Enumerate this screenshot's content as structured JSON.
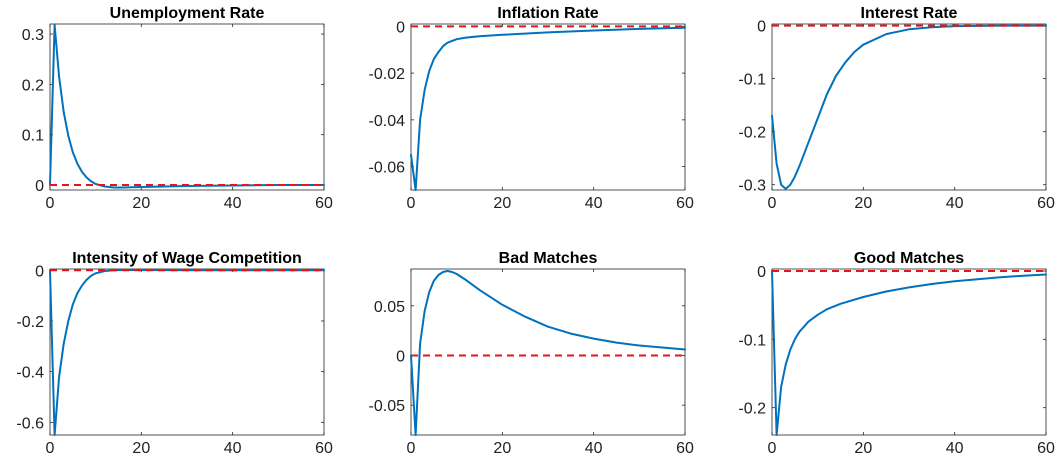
{
  "colors": {
    "response": "#0072bd",
    "zero": "#e8141a"
  },
  "chart_data": [
    {
      "type": "line",
      "title": "Unemployment Rate",
      "xlim": [
        0,
        60
      ],
      "ylim": [
        -0.01,
        0.32
      ],
      "xticks": [
        0,
        20,
        40,
        60
      ],
      "xtick_labels": [
        "0",
        "20",
        "40",
        "60"
      ],
      "yticks": [
        0,
        0.1,
        0.2,
        0.3
      ],
      "ytick_labels": [
        "0",
        "0.1",
        "0.2",
        "0.3"
      ],
      "reference_y": 0,
      "x": [
        0,
        1,
        2,
        3,
        4,
        5,
        6,
        7,
        8,
        9,
        10,
        12,
        14,
        16,
        20,
        25,
        30,
        40,
        50,
        60
      ],
      "y": [
        0,
        0.318,
        0.215,
        0.145,
        0.098,
        0.065,
        0.042,
        0.026,
        0.015,
        0.007,
        0.002,
        -0.003,
        -0.005,
        -0.005,
        -0.004,
        -0.003,
        -0.002,
        -0.001,
        0,
        0
      ]
    },
    {
      "type": "line",
      "title": "Inflation Rate",
      "xlim": [
        0,
        60
      ],
      "ylim": [
        -0.07,
        0.001
      ],
      "xticks": [
        0,
        20,
        40,
        60
      ],
      "xtick_labels": [
        "0",
        "20",
        "40",
        "60"
      ],
      "yticks": [
        -0.06,
        -0.04,
        -0.02,
        0
      ],
      "ytick_labels": [
        "-0.06",
        "-0.04",
        "-0.02",
        "0"
      ],
      "reference_y": 0,
      "x": [
        0,
        1,
        2,
        3,
        4,
        5,
        6,
        7,
        8,
        10,
        12,
        15,
        20,
        30,
        40,
        50,
        60
      ],
      "y": [
        -0.055,
        -0.07,
        -0.04,
        -0.027,
        -0.019,
        -0.014,
        -0.011,
        -0.0085,
        -0.007,
        -0.0055,
        -0.0048,
        -0.0042,
        -0.0036,
        -0.0026,
        -0.0018,
        -0.0011,
        -0.0006
      ]
    },
    {
      "type": "line",
      "title": "Interest Rate",
      "xlim": [
        0,
        60
      ],
      "ylim": [
        -0.31,
        0.003
      ],
      "xticks": [
        0,
        20,
        40,
        60
      ],
      "xtick_labels": [
        "0",
        "20",
        "40",
        "60"
      ],
      "yticks": [
        -0.3,
        -0.2,
        -0.1,
        0
      ],
      "ytick_labels": [
        "-0.3",
        "-0.2",
        "-0.1",
        "0"
      ],
      "reference_y": 0,
      "x": [
        0,
        1,
        2,
        3,
        4,
        5,
        6,
        8,
        10,
        12,
        14,
        16,
        18,
        20,
        25,
        30,
        35,
        40,
        50,
        60
      ],
      "y": [
        -0.17,
        -0.26,
        -0.3,
        -0.308,
        -0.3,
        -0.285,
        -0.265,
        -0.22,
        -0.175,
        -0.13,
        -0.095,
        -0.07,
        -0.05,
        -0.036,
        -0.016,
        -0.007,
        -0.003,
        -0.001,
        0,
        0
      ]
    },
    {
      "type": "line",
      "title": "Intensity of Wage Competition",
      "xlim": [
        0,
        60
      ],
      "ylim": [
        -0.65,
        0.005
      ],
      "xticks": [
        0,
        20,
        40,
        60
      ],
      "xtick_labels": [
        "0",
        "20",
        "40",
        "60"
      ],
      "yticks": [
        -0.6,
        -0.4,
        -0.2,
        0
      ],
      "ytick_labels": [
        "-0.6",
        "-0.4",
        "-0.2",
        "0"
      ],
      "reference_y": 0,
      "x": [
        0,
        1,
        2,
        3,
        4,
        5,
        6,
        7,
        8,
        9,
        10,
        12,
        14,
        16,
        20,
        30,
        40,
        60
      ],
      "y": [
        0,
        -0.65,
        -0.42,
        -0.29,
        -0.2,
        -0.135,
        -0.09,
        -0.06,
        -0.038,
        -0.022,
        -0.012,
        -0.003,
        0,
        0.001,
        0.001,
        0,
        0,
        0
      ]
    },
    {
      "type": "line",
      "title": "Bad Matches",
      "xlim": [
        0,
        60
      ],
      "ylim": [
        -0.08,
        0.087
      ],
      "xticks": [
        0,
        20,
        40,
        60
      ],
      "xtick_labels": [
        "0",
        "20",
        "40",
        "60"
      ],
      "yticks": [
        -0.05,
        0,
        0.05
      ],
      "ytick_labels": [
        "-0.05",
        "0",
        "0.05"
      ],
      "reference_y": 0,
      "x": [
        0,
        1,
        2,
        3,
        4,
        5,
        6,
        7,
        8,
        9,
        10,
        12,
        15,
        20,
        25,
        30,
        35,
        40,
        45,
        50,
        55,
        60
      ],
      "y": [
        0,
        -0.08,
        0.012,
        0.045,
        0.064,
        0.075,
        0.081,
        0.084,
        0.085,
        0.084,
        0.082,
        0.076,
        0.066,
        0.051,
        0.039,
        0.029,
        0.022,
        0.017,
        0.013,
        0.01,
        0.008,
        0.006
      ]
    },
    {
      "type": "line",
      "title": "Good Matches",
      "xlim": [
        0,
        60
      ],
      "ylim": [
        -0.24,
        0.003
      ],
      "xticks": [
        0,
        20,
        40,
        60
      ],
      "xtick_labels": [
        "0",
        "20",
        "40",
        "60"
      ],
      "yticks": [
        -0.2,
        -0.1,
        0
      ],
      "ytick_labels": [
        "-0.2",
        "-0.1",
        "0"
      ],
      "reference_y": 0,
      "x": [
        0,
        1,
        2,
        3,
        4,
        5,
        6,
        8,
        10,
        12,
        15,
        20,
        25,
        30,
        35,
        40,
        45,
        50,
        55,
        60
      ],
      "y": [
        0,
        -0.24,
        -0.17,
        -0.137,
        -0.115,
        -0.1,
        -0.089,
        -0.074,
        -0.064,
        -0.056,
        -0.048,
        -0.038,
        -0.03,
        -0.024,
        -0.019,
        -0.015,
        -0.012,
        -0.009,
        -0.007,
        -0.005
      ]
    }
  ]
}
